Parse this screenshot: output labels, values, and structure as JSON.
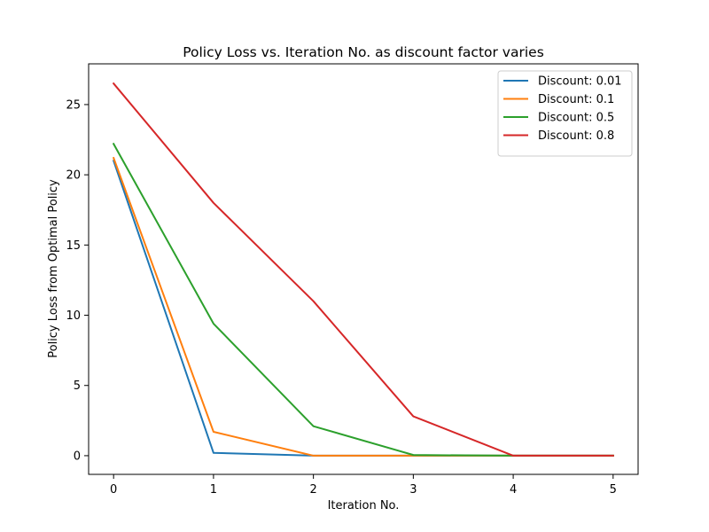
{
  "chart_data": {
    "type": "line",
    "title": "Policy Loss vs. Iteration No. as discount factor varies",
    "xlabel": "Iteration No.",
    "ylabel": "Policy Loss from Optimal Policy",
    "x": [
      0,
      1,
      2,
      3,
      4,
      5
    ],
    "xlim": [
      -0.25,
      5.25
    ],
    "ylim": [
      -1.33,
      27.9
    ],
    "xticks": [
      0,
      1,
      2,
      3,
      4,
      5
    ],
    "yticks": [
      0,
      5,
      10,
      15,
      20,
      25
    ],
    "grid": false,
    "legend_position": "top-right",
    "series": [
      {
        "name": "Discount: 0.01",
        "color": "#1f77b4",
        "values": [
          21.0,
          0.2,
          0.0,
          0.0,
          0.0,
          0.0
        ]
      },
      {
        "name": "Discount: 0.1",
        "color": "#ff7f0e",
        "values": [
          21.2,
          1.7,
          0.0,
          0.0,
          0.0,
          0.0
        ]
      },
      {
        "name": "Discount: 0.5",
        "color": "#2ca02c",
        "values": [
          22.2,
          9.4,
          2.1,
          0.05,
          0.0,
          0.0
        ]
      },
      {
        "name": "Discount: 0.8",
        "color": "#d62728",
        "values": [
          26.5,
          18.0,
          11.0,
          2.8,
          0.0,
          0.0
        ]
      }
    ]
  }
}
